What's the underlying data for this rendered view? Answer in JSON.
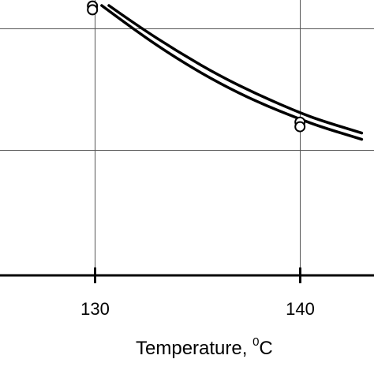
{
  "chart_data": {
    "type": "line",
    "xlabel": "Temperature, ",
    "xlabel_sup": "0",
    "xlabel_unit": "C",
    "x_ticks": [
      "130",
      "140"
    ],
    "x_tick_values": [
      130,
      140
    ],
    "xlim": [
      125.4,
      143.6
    ],
    "ylim": [
      0,
      1
    ],
    "grid": true,
    "curves": [
      {
        "points": [
          [
            130.35,
            1.0
          ],
          [
            132,
            0.9
          ],
          [
            134,
            0.79
          ],
          [
            136,
            0.695
          ],
          [
            138,
            0.615
          ],
          [
            140,
            0.55
          ],
          [
            141,
            0.52
          ],
          [
            143,
            0.47
          ]
        ]
      },
      {
        "points": [
          [
            130.7,
            1.0
          ],
          [
            132,
            0.925
          ],
          [
            134,
            0.82
          ],
          [
            136,
            0.725
          ],
          [
            138,
            0.645
          ],
          [
            140,
            0.575
          ],
          [
            141,
            0.545
          ],
          [
            143,
            0.495
          ]
        ]
      }
    ],
    "markers": [
      {
        "x": 129.9,
        "y": 0.998
      },
      {
        "x": 129.9,
        "y": 0.983
      },
      {
        "x": 140.0,
        "y": 0.538
      },
      {
        "x": 140.0,
        "y": 0.52
      }
    ]
  }
}
